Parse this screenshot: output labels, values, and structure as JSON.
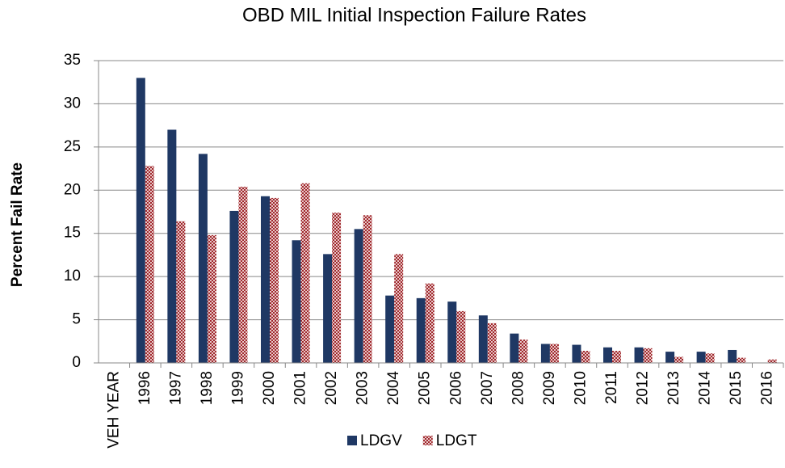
{
  "chart_data": {
    "type": "bar",
    "title": "OBD MIL Initial Inspection Failure Rates",
    "y_label": "Percent Fail Rate",
    "categories": [
      "VEH YEAR",
      "1996",
      "1997",
      "1998",
      "1999",
      "2000",
      "2001",
      "2002",
      "2003",
      "2004",
      "2005",
      "2006",
      "2007",
      "2008",
      "2009",
      "2010",
      "2011",
      "2012",
      "2013",
      "2014",
      "2015",
      "2016"
    ],
    "series": [
      {
        "name": "LDGV",
        "color": "#1f3864",
        "values": [
          null,
          33,
          27,
          24.2,
          17.6,
          19.3,
          14.2,
          12.6,
          15.5,
          7.8,
          7.5,
          7.1,
          5.5,
          3.4,
          2.2,
          2.1,
          1.8,
          1.8,
          1.3,
          1.3,
          1.5,
          null
        ]
      },
      {
        "name": "LDGT",
        "color": "#a0282d",
        "values": [
          null,
          22.8,
          16.4,
          14.8,
          20.4,
          19.1,
          20.8,
          17.4,
          17.1,
          12.6,
          9.2,
          6.0,
          4.6,
          2.7,
          2.2,
          1.4,
          1.4,
          1.7,
          0.7,
          1.1,
          0.6,
          0.4
        ]
      }
    ],
    "ylim": [
      0,
      35
    ],
    "yticks": [
      0,
      5,
      10,
      15,
      20,
      25,
      30,
      35
    ],
    "grid": true,
    "legend": "bottom"
  }
}
